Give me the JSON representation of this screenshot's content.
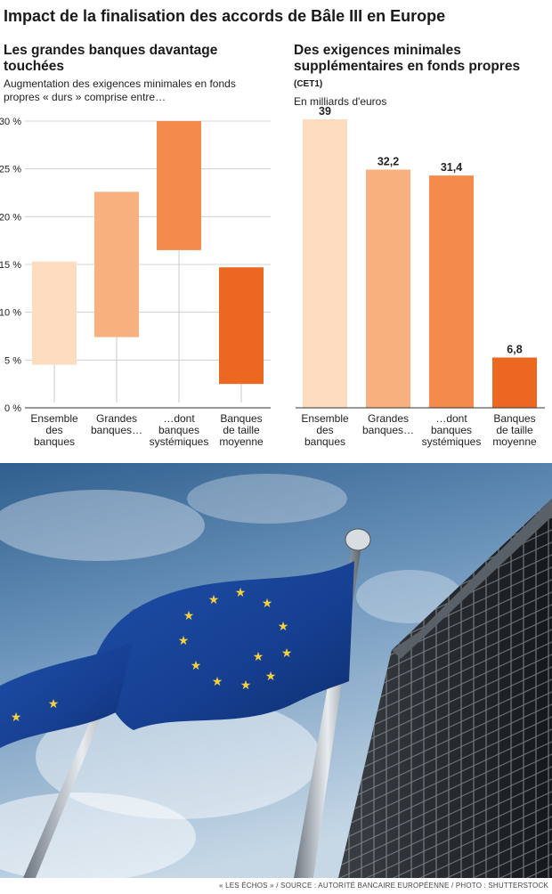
{
  "title": "Impact de la finalisation des accords de Bâle III en Europe",
  "footer": "« LES ÉCHOS » / SOURCE : AUTORITÉ BANCAIRE EUROPÉENNE / PHOTO : SHUTTERSTOCK",
  "colors": [
    "#fddcc0",
    "#f9b07f",
    "#f48a4c",
    "#ec6820"
  ],
  "chart_data": [
    {
      "type": "bar",
      "title": "Les grandes banques davantage touchées",
      "subtitle": "Augmentation des exigences minimales en fonds propres « durs » comprise entre…",
      "categories": [
        [
          "Ensemble",
          "des",
          "banques"
        ],
        [
          "Grandes",
          "banques…"
        ],
        [
          "…dont",
          "banques",
          "systémiques"
        ],
        [
          "Banques",
          "de taille",
          "moyenne"
        ]
      ],
      "ranges": [
        {
          "low": 4.5,
          "high": 15.3
        },
        {
          "low": 7.4,
          "high": 22.6
        },
        {
          "low": 16.5,
          "high": 30.0
        },
        {
          "low": 2.5,
          "high": 14.7
        }
      ],
      "yticks": [
        "0 %",
        "5 %",
        "10 %",
        "15 %",
        "20 %",
        "25 %",
        "30 %"
      ],
      "ylim": [
        0,
        30
      ],
      "grid": true
    },
    {
      "type": "bar",
      "title": "Des exigences minimales supplémentaires en fonds propres",
      "title_suffix": "(CET1)",
      "subtitle": "En milliards d'euros",
      "categories": [
        [
          "Ensemble",
          "des",
          "banques"
        ],
        [
          "Grandes",
          "banques…"
        ],
        [
          "…dont",
          "banques",
          "systémiques"
        ],
        [
          "Banques",
          "de taille",
          "moyenne"
        ]
      ],
      "values": [
        39,
        32.2,
        31.4,
        6.8
      ],
      "value_labels": [
        "39",
        "32,2",
        "31,4",
        "6,8"
      ],
      "ylim": [
        0,
        39
      ]
    }
  ]
}
